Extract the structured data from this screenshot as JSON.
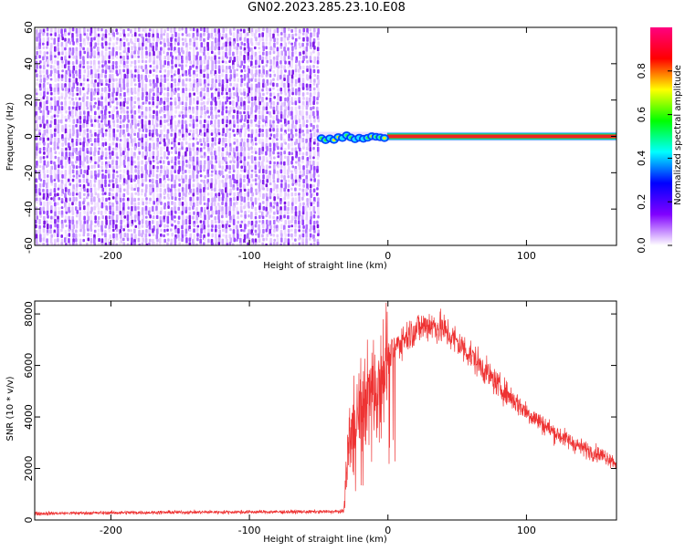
{
  "page_title": "GN02.2023.285.23.10.E08",
  "chart_data": [
    {
      "type": "heatmap",
      "title": "GN02.2023.285.23.10.E08",
      "xlabel": "Height of straight line (km)",
      "ylabel": "Frequency (Hz)",
      "xlim": [
        -255,
        165
      ],
      "ylim": [
        -60,
        60
      ],
      "x_ticks": [
        -200,
        -100,
        0,
        100
      ],
      "y_ticks": [
        -60,
        -40,
        -20,
        0,
        20,
        40,
        60
      ],
      "noise_region_x": [
        -255,
        -50
      ],
      "signal_start_x": -50,
      "signal_frequency_hz": 0,
      "signal_amplitude": 0.95,
      "colorbar": {
        "label": "Normalized spectral amplitude",
        "range": [
          0,
          1
        ],
        "ticks": [
          0.0,
          0.2,
          0.4,
          0.6,
          0.8
        ],
        "colors": [
          "#ffffff",
          "#8000ff",
          "#0000ff",
          "#00ffff",
          "#00ff00",
          "#ffff00",
          "#ff0000",
          "#ff0080"
        ]
      }
    },
    {
      "type": "line",
      "xlabel": "Height of straight line (km)",
      "ylabel": "SNR (10 * v/v)",
      "xlim": [
        -255,
        165
      ],
      "ylim": [
        0,
        8500
      ],
      "x_ticks": [
        -200,
        -100,
        0,
        100
      ],
      "y_ticks": [
        0,
        2000,
        4000,
        6000,
        8000
      ],
      "color": "#ee3333",
      "series": [
        {
          "x": [
            -255,
            -200,
            -150,
            -100,
            -50,
            -32,
            -30,
            -28,
            -25,
            -20,
            -15,
            -10,
            -5,
            0,
            10,
            20,
            30,
            40,
            50,
            60,
            70,
            80,
            90,
            100,
            110,
            120,
            130,
            140,
            150,
            160,
            165
          ],
          "y": [
            250,
            280,
            300,
            310,
            320,
            330,
            2000,
            3200,
            3800,
            4300,
            4800,
            5200,
            5800,
            6300,
            7000,
            7400,
            7600,
            7400,
            6900,
            6400,
            5800,
            5200,
            4700,
            4200,
            3800,
            3400,
            3100,
            2800,
            2600,
            2400,
            2200
          ]
        }
      ]
    }
  ]
}
